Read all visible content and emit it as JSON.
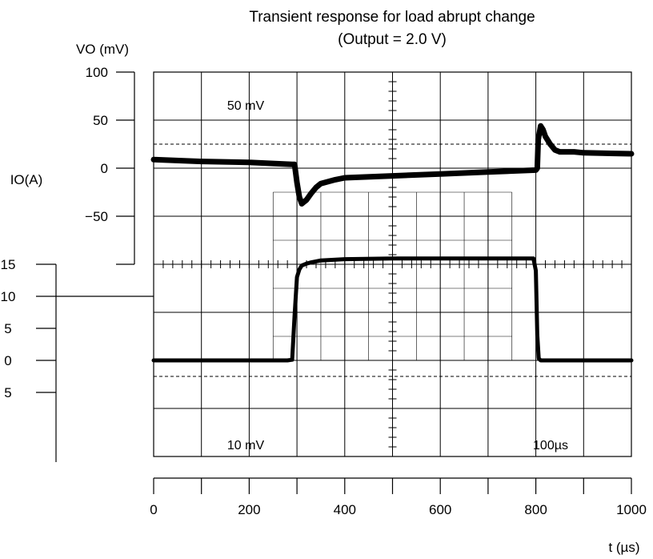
{
  "chart_data": {
    "type": "line",
    "title": "Transient response for load abrupt change",
    "subtitle": "(Output = 2.0 V)",
    "xlabel": "t (µs)",
    "x_ticks": [
      "0",
      "200",
      "400",
      "600",
      "800",
      "1000"
    ],
    "xlim": [
      0,
      1000
    ],
    "ylabel_left_vo": "VO (mV)",
    "vo_ticks": [
      "100",
      "50",
      "0",
      "−50"
    ],
    "ylim_vo": [
      -70,
      100
    ],
    "ylabel_left_io": "IO(A)",
    "io_ticks": [
      "15",
      "10",
      "5",
      "0",
      "5"
    ],
    "ylim_io": [
      -10,
      17.5
    ],
    "scope_labels": {
      "vo_scale": "50 mV",
      "io_scale": "10 mV",
      "time_scale": "100µs"
    },
    "series": [
      {
        "axis": "vo",
        "x": [
          0,
          100,
          200,
          290,
          295,
          300,
          305,
          310,
          320,
          330,
          340,
          350,
          380,
          400,
          500,
          600,
          700,
          800,
          803,
          805,
          810,
          815,
          820,
          830,
          840,
          850,
          860,
          880,
          900,
          1000
        ],
        "y": [
          9,
          7,
          6,
          4,
          4,
          -15,
          -30,
          -37,
          -33,
          -26,
          -20,
          -16,
          -12,
          -10,
          -8,
          -6,
          -4,
          -2,
          0,
          30,
          44,
          40,
          33,
          25,
          19,
          17,
          17,
          17,
          16,
          15
        ]
      },
      {
        "axis": "io",
        "x": [
          0,
          100,
          200,
          280,
          290,
          295,
          300,
          305,
          310,
          320,
          330,
          350,
          400,
          500,
          600,
          700,
          795,
          800,
          803,
          806,
          810,
          850,
          900,
          1000
        ],
        "y": [
          0,
          0,
          0,
          0,
          0.1,
          7,
          13,
          14.2,
          14.8,
          15.1,
          15.3,
          15.6,
          15.8,
          15.9,
          15.9,
          15.9,
          15.9,
          14,
          4,
          0.3,
          0,
          0,
          0,
          0
        ]
      }
    ],
    "reference_lines": [
      {
        "type": "dashed",
        "axis": "vo",
        "value": 25
      },
      {
        "type": "dashed",
        "axis": "io",
        "value": -2.5
      }
    ]
  }
}
